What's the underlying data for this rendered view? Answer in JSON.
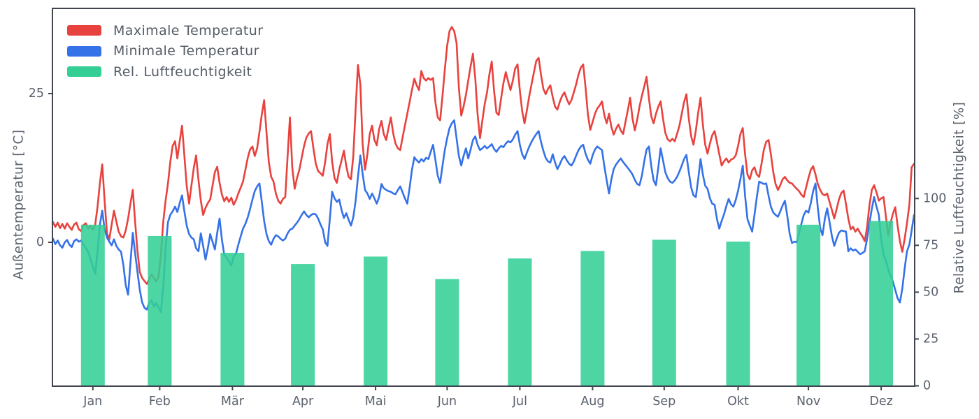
{
  "chart_data": {
    "type": "line+bar",
    "title": "",
    "x_axis": {
      "tick_labels": [
        "Jan",
        "Feb",
        "Mär",
        "Apr",
        "Mai",
        "Jun",
        "Jul",
        "Aug",
        "Sep",
        "Okt",
        "Nov",
        "Dez"
      ]
    },
    "left_axis": {
      "label": "Außentemperatur [°C]",
      "ticks": [
        0,
        25
      ],
      "range": [
        -24.2,
        39.3
      ]
    },
    "right_axis": {
      "label": "Relative Luftfeuchtigkeit [%]",
      "ticks": [
        0,
        25,
        50,
        75,
        100
      ],
      "range": [
        0,
        202
      ]
    },
    "legend": [
      {
        "label": "Maximale Temperatur",
        "color": "#e8423e"
      },
      {
        "label": "Minimale Temperatur",
        "color": "#3572e8"
      },
      {
        "label": "Rel. Luftfeuchtigkeit",
        "color": "#33cf95"
      }
    ],
    "series": [
      {
        "name": "Maximale Temperatur",
        "type": "line",
        "axis": "left",
        "unit": "°C",
        "color": "#e8423e",
        "day_start": -2,
        "values": [
          3.4,
          2.6,
          3.3,
          2.4,
          3.1,
          2.3,
          3.2,
          2.6,
          2.1,
          3.0,
          3.3,
          2.2,
          1.9,
          2.9,
          3.2,
          2.3,
          2.8,
          2.1,
          3.0,
          6.0,
          10.0,
          13.1,
          7.0,
          1.5,
          0.5,
          3.0,
          5.3,
          3.5,
          1.8,
          1.0,
          0.8,
          2.0,
          4.0,
          6.5,
          8.8,
          3.5,
          -1.5,
          -5.0,
          -6.0,
          -6.5,
          -7.0,
          -6.2,
          -5.4,
          -6.0,
          -6.6,
          -5.8,
          -2.0,
          3.5,
          7.0,
          9.9,
          13.5,
          16.2,
          17.0,
          14.1,
          17.0,
          19.6,
          14.5,
          9.5,
          6.5,
          9.5,
          12.5,
          14.6,
          10.5,
          7.0,
          4.6,
          5.8,
          6.6,
          7.2,
          9.5,
          11.8,
          12.7,
          10.0,
          8.0,
          6.9,
          7.6,
          6.8,
          7.5,
          6.3,
          7.1,
          8.2,
          9.2,
          10.2,
          12.2,
          14.2,
          15.6,
          16.1,
          14.5,
          15.8,
          18.5,
          21.5,
          23.9,
          18.5,
          13.5,
          11.0,
          10.2,
          8.2,
          7.0,
          6.5,
          7.3,
          7.6,
          14.5,
          21.0,
          12.5,
          9.0,
          10.8,
          12.2,
          14.2,
          16.2,
          17.6,
          18.3,
          18.7,
          15.8,
          13.2,
          12.0,
          11.6,
          11.2,
          13.5,
          16.5,
          18.2,
          13.5,
          10.8,
          10.0,
          12.2,
          13.8,
          15.4,
          12.8,
          11.0,
          10.6,
          14.5,
          22.5,
          29.8,
          26.5,
          16.5,
          12.2,
          14.8,
          18.2,
          19.6,
          17.2,
          16.3,
          19.0,
          20.4,
          18.2,
          17.2,
          19.2,
          21.0,
          18.3,
          16.6,
          15.8,
          15.5,
          17.6,
          19.6,
          21.6,
          23.6,
          25.6,
          27.5,
          26.4,
          25.6,
          28.8,
          27.6,
          27.2,
          27.6,
          27.3,
          27.6,
          23.5,
          21.0,
          20.5,
          24.5,
          29.0,
          33.0,
          35.5,
          36.2,
          35.5,
          33.5,
          26.0,
          21.3,
          22.8,
          24.8,
          27.2,
          29.6,
          31.7,
          27.5,
          21.5,
          17.5,
          20.5,
          23.2,
          25.2,
          28.2,
          30.4,
          25.5,
          21.8,
          21.4,
          24.2,
          26.8,
          28.6,
          27.0,
          25.6,
          27.2,
          29.2,
          29.9,
          25.5,
          22.0,
          20.0,
          22.2,
          24.6,
          26.6,
          28.6,
          30.5,
          31.0,
          28.2,
          25.8,
          24.9,
          25.8,
          26.4,
          24.4,
          22.8,
          22.3,
          23.6,
          24.6,
          25.2,
          24.1,
          23.2,
          23.9,
          25.2,
          26.6,
          28.2,
          29.4,
          29.9,
          26.0,
          21.5,
          18.9,
          20.2,
          21.6,
          22.5,
          23.0,
          23.7,
          21.4,
          20.0,
          21.6,
          19.4,
          18.1,
          19.1,
          19.8,
          18.8,
          18.2,
          20.2,
          22.2,
          24.3,
          20.8,
          18.8,
          20.6,
          22.8,
          24.6,
          26.2,
          27.8,
          24.2,
          21.2,
          20.0,
          21.6,
          22.8,
          23.7,
          20.8,
          18.4,
          17.3,
          17.0,
          17.4,
          17.0,
          18.2,
          19.6,
          21.6,
          23.6,
          24.9,
          20.8,
          17.8,
          16.4,
          18.8,
          21.8,
          24.3,
          19.8,
          16.4,
          14.9,
          16.6,
          18.0,
          18.7,
          16.8,
          14.8,
          12.9,
          13.6,
          14.1,
          13.4,
          13.9,
          14.1,
          14.6,
          16.2,
          18.2,
          19.2,
          14.8,
          11.4,
          10.6,
          12.1,
          12.6,
          11.4,
          11.0,
          13.2,
          15.6,
          16.9,
          17.2,
          14.8,
          11.8,
          9.8,
          8.8,
          9.6,
          10.6,
          11.0,
          10.4,
          10.0,
          9.9,
          9.4,
          9.0,
          8.6,
          8.0,
          7.6,
          9.2,
          10.8,
          12.2,
          12.8,
          11.4,
          9.8,
          8.8,
          8.1,
          7.9,
          8.2,
          6.8,
          5.4,
          4.0,
          5.6,
          7.2,
          8.3,
          8.7,
          6.4,
          4.0,
          2.2,
          2.6,
          1.8,
          2.3,
          1.6,
          1.0,
          0.2,
          2.6,
          6.2,
          8.8,
          9.6,
          8.4,
          7.0,
          7.4,
          7.6,
          4.4,
          1.2,
          3.2,
          4.8,
          5.9,
          2.8,
          0.2,
          -1.6,
          0.6,
          3.2,
          6.3,
          12.6,
          13.2
        ]
      },
      {
        "name": "Minimale Temperatur",
        "type": "line",
        "axis": "left",
        "unit": "°C",
        "day_start": -2,
        "color": "#3572e8",
        "values": [
          0.6,
          -0.3,
          0.3,
          -0.5,
          -0.9,
          0.0,
          0.4,
          -0.4,
          -0.8,
          0.2,
          0.5,
          0.1,
          0.3,
          -0.4,
          -1.0,
          -1.6,
          -2.8,
          -4.2,
          -5.3,
          -1.5,
          3.0,
          5.3,
          2.2,
          0.8,
          0.1,
          -0.5,
          0.5,
          -0.6,
          -1.2,
          -1.6,
          -3.8,
          -7.2,
          -8.8,
          -3.5,
          1.6,
          -1.8,
          -5.0,
          -8.0,
          -10.1,
          -11.0,
          -11.3,
          -10.2,
          -9.8,
          -10.8,
          -10.2,
          -11.0,
          -11.7,
          -7.5,
          -1.0,
          3.4,
          4.6,
          5.2,
          6.0,
          5.1,
          6.6,
          7.9,
          5.2,
          2.8,
          1.4,
          0.8,
          0.5,
          -1.0,
          -1.5,
          1.5,
          -0.6,
          -2.9,
          -1.0,
          1.4,
          0.1,
          -1.2,
          1.6,
          4.0,
          0.4,
          -2.1,
          -2.6,
          -3.2,
          -3.9,
          -2.4,
          -1.9,
          -0.4,
          1.0,
          2.3,
          3.1,
          4.2,
          5.6,
          7.2,
          8.6,
          9.4,
          9.9,
          6.8,
          3.6,
          1.4,
          0.2,
          -0.4,
          0.6,
          1.2,
          1.0,
          0.6,
          0.3,
          0.6,
          1.5,
          2.1,
          2.3,
          2.8,
          3.3,
          3.9,
          4.6,
          5.2,
          4.6,
          4.2,
          4.6,
          4.8,
          4.7,
          4.0,
          3.0,
          2.2,
          0.0,
          -0.6,
          4.0,
          8.5,
          7.4,
          6.8,
          7.2,
          5.4,
          4.1,
          4.9,
          3.8,
          2.8,
          4.2,
          7.0,
          11.0,
          14.6,
          11.5,
          8.8,
          8.2,
          7.3,
          8.2,
          7.4,
          6.5,
          7.6,
          9.8,
          9.1,
          8.8,
          8.6,
          8.5,
          8.2,
          8.1,
          8.8,
          9.4,
          8.4,
          7.4,
          6.5,
          9.2,
          12.2,
          14.3,
          13.8,
          13.4,
          14.0,
          13.6,
          14.2,
          14.0,
          15.2,
          16.4,
          13.8,
          11.2,
          10.0,
          12.8,
          15.5,
          17.5,
          19.2,
          20.0,
          20.5,
          17.5,
          14.5,
          12.9,
          14.5,
          15.8,
          14.1,
          15.6,
          17.2,
          17.8,
          16.4,
          15.5,
          15.8,
          16.2,
          15.8,
          16.1,
          16.5,
          15.7,
          15.2,
          15.8,
          16.2,
          16.0,
          16.6,
          17.0,
          16.8,
          17.3,
          18.1,
          18.7,
          16.4,
          14.8,
          14.0,
          15.1,
          16.1,
          16.9,
          17.6,
          18.2,
          18.7,
          16.9,
          15.4,
          14.2,
          13.6,
          13.4,
          14.8,
          13.4,
          12.3,
          13.1,
          14.0,
          14.5,
          13.8,
          13.2,
          12.9,
          13.6,
          14.6,
          15.5,
          16.1,
          16.4,
          14.9,
          13.9,
          13.2,
          14.6,
          15.6,
          16.1,
          15.8,
          15.5,
          12.8,
          10.4,
          8.2,
          10.6,
          12.3,
          13.1,
          13.6,
          14.1,
          13.5,
          13.0,
          12.5,
          12.0,
          11.4,
          10.5,
          9.8,
          9.6,
          11.2,
          13.6,
          15.6,
          16.1,
          12.8,
          10.4,
          9.6,
          12.6,
          15.8,
          13.8,
          11.8,
          10.8,
          10.2,
          10.0,
          10.4,
          11.0,
          11.9,
          12.9,
          14.0,
          14.7,
          11.8,
          9.2,
          7.9,
          7.6,
          10.6,
          14.0,
          11.4,
          9.5,
          9.0,
          7.4,
          6.5,
          6.3,
          3.9,
          2.3,
          3.6,
          4.7,
          6.1,
          7.3,
          6.4,
          6.0,
          7.1,
          8.7,
          10.6,
          12.9,
          7.8,
          3.9,
          2.8,
          1.8,
          4.6,
          7.6,
          10.2,
          10.0,
          9.8,
          9.9,
          7.8,
          6.0,
          5.0,
          4.6,
          4.3,
          5.2,
          6.2,
          7.0,
          4.4,
          1.4,
          -0.1,
          0.1,
          0.0,
          1.6,
          3.1,
          4.6,
          5.3,
          5.0,
          6.6,
          8.6,
          9.9,
          5.8,
          2.4,
          1.2,
          4.0,
          5.7,
          3.4,
          1.0,
          -0.6,
          0.6,
          1.6,
          2.0,
          1.9,
          1.8,
          -1.5,
          -1.0,
          -1.4,
          -1.2,
          -1.6,
          -2.0,
          -1.8,
          -1.5,
          0.6,
          3.2,
          5.6,
          7.6,
          6.0,
          4.6,
          0.4,
          -2.0,
          -3.1,
          -4.6,
          -5.6,
          -6.6,
          -8.0,
          -9.4,
          -10.1,
          -7.8,
          -4.4,
          -1.5,
          -0.4,
          2.0,
          4.6
        ]
      },
      {
        "name": "Rel. Luftfeuchtigkeit",
        "type": "bar",
        "axis": "right",
        "unit": "%",
        "color": "#33cf95",
        "categories": [
          "Jan",
          "Feb",
          "Mär",
          "Apr",
          "Mai",
          "Jun",
          "Jul",
          "Aug",
          "Sep",
          "Okt",
          "Nov",
          "Dez"
        ],
        "values": [
          86,
          80,
          71,
          65,
          69,
          57,
          68,
          72,
          78,
          77,
          86,
          88
        ]
      }
    ]
  }
}
